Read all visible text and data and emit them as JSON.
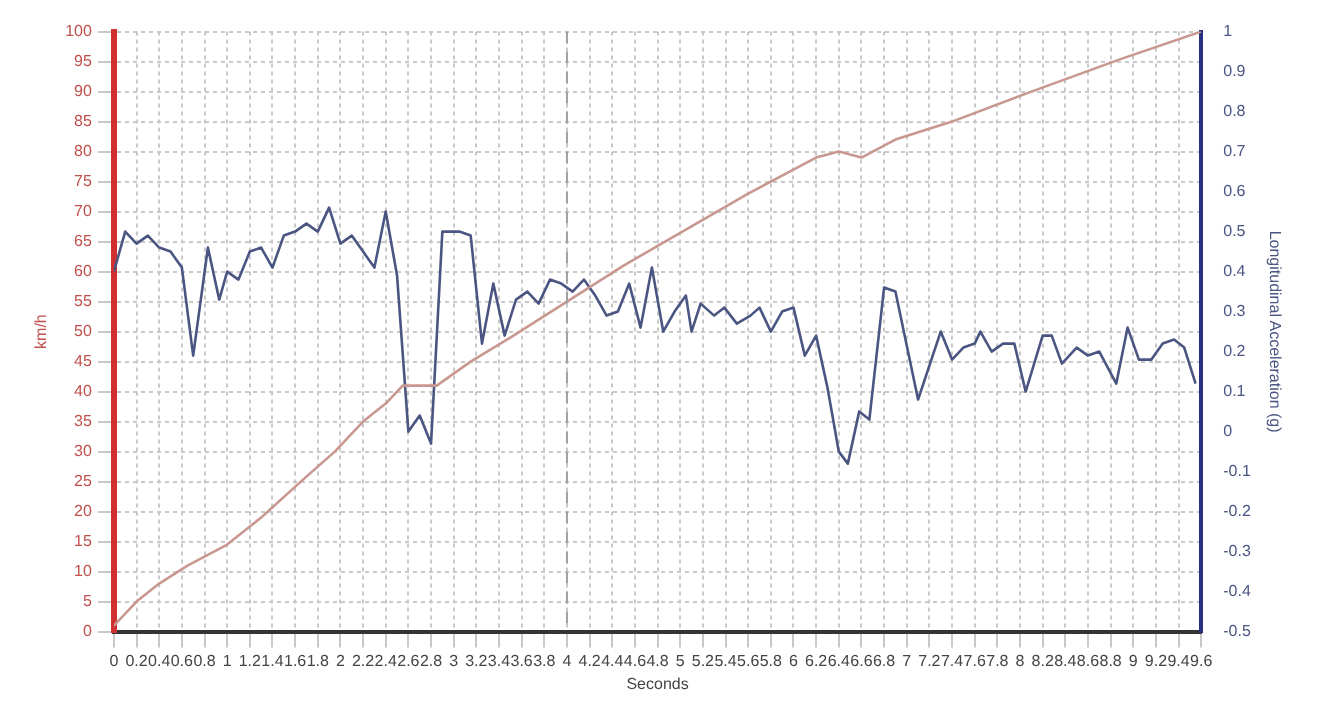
{
  "chart_data": {
    "type": "line",
    "xlabel": "Seconds",
    "ylabel": "km/h",
    "y2label": "Longitudinal Acceleration (g)",
    "xlim": [
      0,
      9.6
    ],
    "xticks": [
      0,
      0.2,
      0.4,
      0.6,
      0.8,
      1,
      1.2,
      1.4,
      1.6,
      1.8,
      2,
      2.2,
      2.4,
      2.6,
      2.8,
      3,
      3.2,
      3.4,
      3.6,
      3.8,
      4,
      4.2,
      4.4,
      4.6,
      4.8,
      5,
      5.2,
      5.4,
      5.6,
      5.8,
      6,
      6.2,
      6.4,
      6.6,
      6.8,
      7,
      7.2,
      7.4,
      7.6,
      7.8,
      8,
      8.2,
      8.4,
      8.6,
      8.8,
      9,
      9.2,
      9.4,
      9.6
    ],
    "ylim": [
      0,
      100
    ],
    "yticks": [
      0,
      5,
      10,
      15,
      20,
      25,
      30,
      35,
      40,
      45,
      50,
      55,
      60,
      65,
      70,
      75,
      80,
      85,
      90,
      95,
      100
    ],
    "y2lim": [
      -0.5,
      1
    ],
    "y2ticks": [
      -0.5,
      -0.4,
      -0.3,
      -0.2,
      -0.1,
      0,
      0.1,
      0.2,
      0.3,
      0.4,
      0.5,
      0.6,
      0.7,
      0.8,
      0.9,
      1
    ],
    "grid": true,
    "legend": false,
    "marker": "none",
    "line_style": "solid",
    "ref_lines": [
      {
        "axis": "x",
        "value": 4,
        "color": "#a0a0a0",
        "line_style": "dashed"
      }
    ],
    "series": [
      {
        "color": "#c89890",
        "x": [
          0,
          0.2,
          0.4,
          0.65,
          1,
          1.3,
          1.65,
          1.95,
          2.2,
          2.4,
          2.55,
          2.85,
          3.15,
          3.5,
          4,
          4.5,
          5.05,
          5.6,
          6.2,
          6.4,
          6.6,
          6.9,
          7.4,
          8.1,
          8.9,
          9.6
        ],
        "values": [
          1,
          5,
          8,
          11,
          14.5,
          19,
          25,
          30,
          35,
          38,
          41,
          41,
          45,
          49,
          55,
          61,
          67,
          73,
          79,
          80,
          79,
          82,
          85,
          90,
          95.5,
          100
        ]
      },
      {
        "color": "#4a5582",
        "axis": "y2",
        "x": [
          0,
          0.1,
          0.2,
          0.3,
          0.4,
          0.5,
          0.6,
          0.7,
          0.83,
          0.93,
          1,
          1.1,
          1.2,
          1.3,
          1.4,
          1.5,
          1.6,
          1.7,
          1.8,
          1.9,
          2,
          2.1,
          2.2,
          2.3,
          2.4,
          2.5,
          2.6,
          2.7,
          2.8,
          2.9,
          3.05,
          3.15,
          3.25,
          3.35,
          3.45,
          3.55,
          3.65,
          3.75,
          3.85,
          3.95,
          4.05,
          4.15,
          4.25,
          4.35,
          4.45,
          4.55,
          4.65,
          4.75,
          4.85,
          4.95,
          5.05,
          5.1,
          5.18,
          5.3,
          5.39,
          5.5,
          5.62,
          5.7,
          5.8,
          5.9,
          6,
          6.1,
          6.2,
          6.3,
          6.4,
          6.48,
          6.58,
          6.67,
          6.8,
          6.9,
          7.1,
          7.3,
          7.4,
          7.5,
          7.6,
          7.65,
          7.75,
          7.85,
          7.95,
          8.05,
          8.2,
          8.28,
          8.37,
          8.5,
          8.6,
          8.7,
          8.85,
          8.95,
          9.05,
          9.16,
          9.26,
          9.36,
          9.45,
          9.55
        ],
        "values": [
          0.4,
          0.5,
          0.47,
          0.49,
          0.46,
          0.45,
          0.41,
          0.19,
          0.46,
          0.33,
          0.4,
          0.38,
          0.45,
          0.46,
          0.41,
          0.49,
          0.5,
          0.52,
          0.5,
          0.56,
          0.47,
          0.49,
          0.45,
          0.41,
          0.55,
          0.39,
          0.0,
          0.04,
          -0.03,
          0.5,
          0.5,
          0.49,
          0.22,
          0.37,
          0.24,
          0.33,
          0.35,
          0.32,
          0.38,
          0.37,
          0.35,
          0.38,
          0.34,
          0.29,
          0.3,
          0.37,
          0.26,
          0.41,
          0.25,
          0.3,
          0.34,
          0.25,
          0.32,
          0.29,
          0.31,
          0.27,
          0.29,
          0.31,
          0.25,
          0.3,
          0.31,
          0.19,
          0.24,
          0.11,
          -0.05,
          -0.08,
          0.05,
          0.03,
          0.36,
          0.35,
          0.08,
          0.25,
          0.18,
          0.21,
          0.22,
          0.25,
          0.2,
          0.22,
          0.22,
          0.1,
          0.24,
          0.24,
          0.17,
          0.21,
          0.19,
          0.2,
          0.12,
          0.26,
          0.18,
          0.18,
          0.22,
          0.23,
          0.21,
          0.12
        ]
      }
    ]
  }
}
